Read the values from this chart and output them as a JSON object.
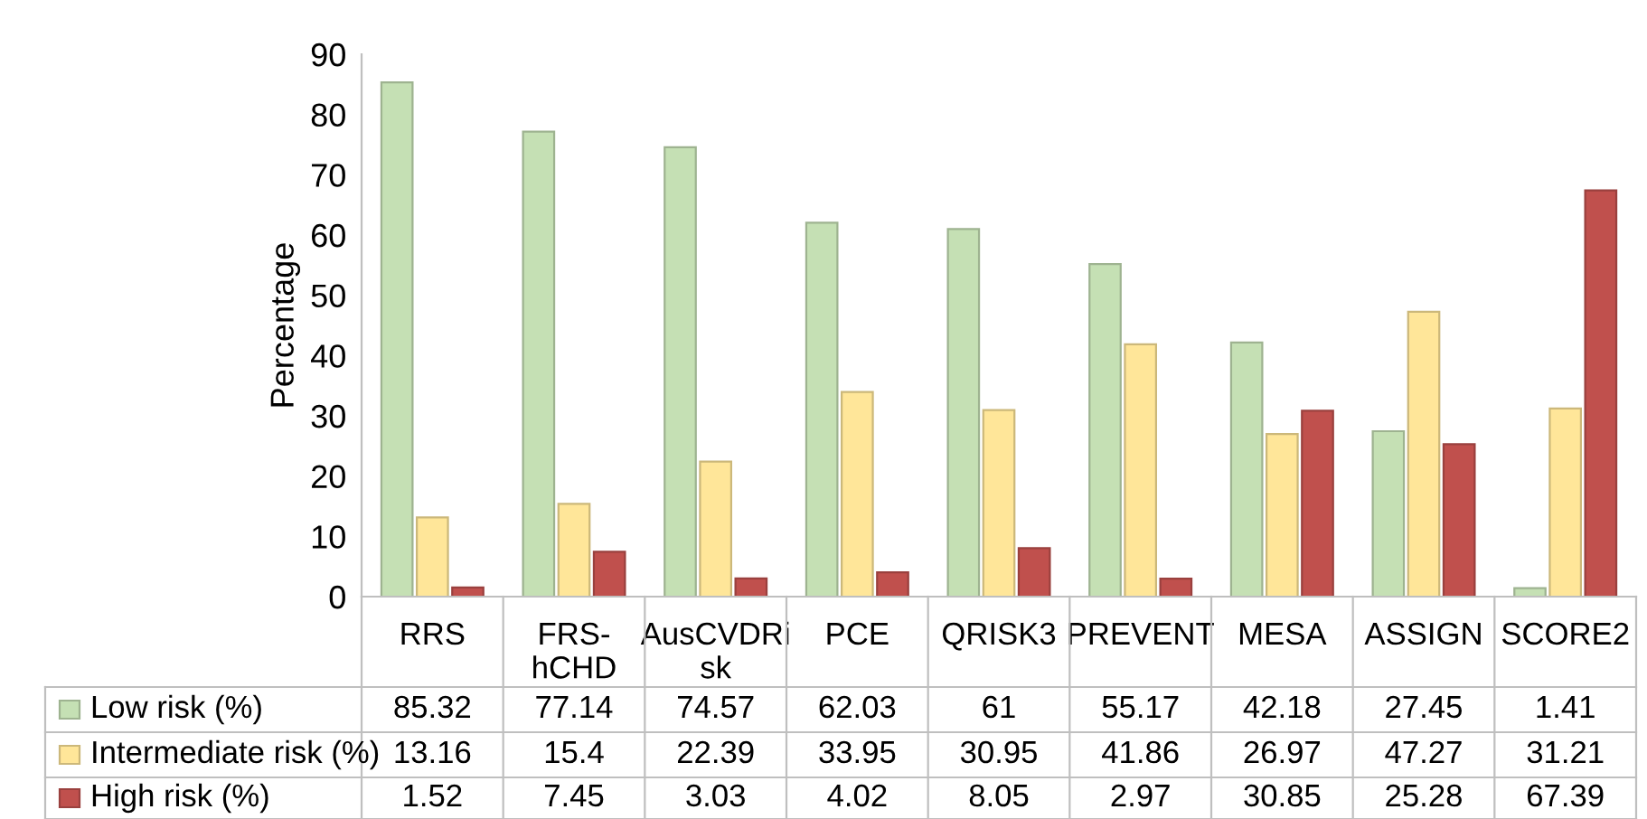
{
  "chart_data": {
    "type": "bar",
    "ylabel": "Percentage",
    "categories": [
      "RRS",
      "FRS-hCHD",
      "AusCVDRisk",
      "PCE",
      "QRISK3",
      "PREVENT",
      "MESA",
      "ASSIGN",
      "SCORE2"
    ],
    "series": [
      {
        "name": "Low risk (%)",
        "color": "#c5e0b4",
        "values": [
          85.32,
          77.14,
          74.57,
          62.03,
          61,
          55.17,
          42.18,
          27.45,
          1.41
        ]
      },
      {
        "name": "Intermediate risk (%)",
        "color": "#ffe699",
        "values": [
          13.16,
          15.4,
          22.39,
          33.95,
          30.95,
          41.86,
          26.97,
          47.27,
          31.21
        ]
      },
      {
        "name": "High risk (%)",
        "color": "#c0504d",
        "values": [
          1.52,
          7.45,
          3.03,
          4.02,
          8.05,
          2.97,
          30.85,
          25.28,
          67.39
        ]
      }
    ],
    "ylim": [
      0,
      90
    ],
    "yticks": [
      0,
      10,
      20,
      30,
      40,
      50,
      60,
      70,
      80,
      90
    ],
    "data_labels": true,
    "legend": "bottom",
    "grid": false
  }
}
